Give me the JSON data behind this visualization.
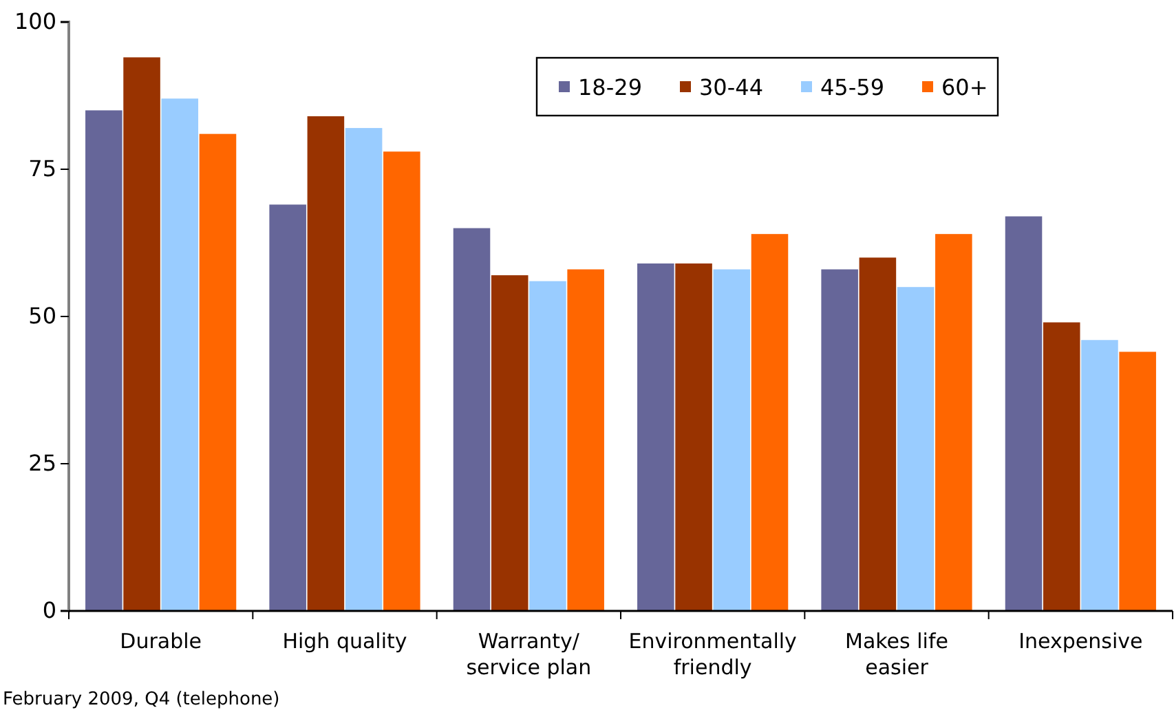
{
  "chart_data": {
    "type": "bar",
    "categories": [
      "Durable",
      "High quality",
      "Warranty/\nservice plan",
      "Environmentally\nfriendly",
      "Makes life\neasier",
      "Inexpensive"
    ],
    "series": [
      {
        "name": "18-29",
        "color": "#666699",
        "values": [
          85,
          69,
          65,
          59,
          58,
          67
        ]
      },
      {
        "name": "30-44",
        "color": "#993300",
        "values": [
          94,
          84,
          57,
          59,
          60,
          49
        ]
      },
      {
        "name": "45-59",
        "color": "#99ccff",
        "values": [
          87,
          82,
          56,
          58,
          55,
          46
        ]
      },
      {
        "name": "60+",
        "color": "#ff6600",
        "values": [
          81,
          78,
          58,
          64,
          64,
          44
        ]
      }
    ],
    "ylim": [
      0,
      100
    ],
    "yticks": [
      0,
      25,
      50,
      75,
      100
    ],
    "grid": false,
    "legend": "top right",
    "annotations": [
      "February 2009, Q4 (telephone)"
    ]
  }
}
